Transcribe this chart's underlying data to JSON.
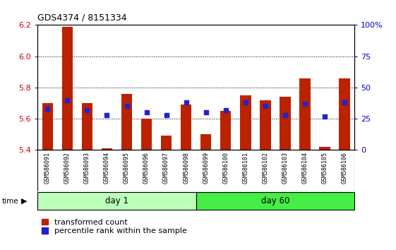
{
  "title": "GDS4374 / 8151334",
  "samples": [
    "GSM586091",
    "GSM586092",
    "GSM586093",
    "GSM586094",
    "GSM586095",
    "GSM586096",
    "GSM586097",
    "GSM586098",
    "GSM586099",
    "GSM586100",
    "GSM586101",
    "GSM586102",
    "GSM586103",
    "GSM586104",
    "GSM586105",
    "GSM586106"
  ],
  "bar_heights": [
    5.7,
    6.19,
    5.7,
    5.41,
    5.76,
    5.6,
    5.49,
    5.69,
    5.5,
    5.65,
    5.75,
    5.72,
    5.74,
    5.86,
    5.42,
    5.86
  ],
  "percentile_values": [
    33,
    40,
    32,
    28,
    35,
    30,
    28,
    38,
    30,
    32,
    38,
    35,
    28,
    37,
    27,
    38
  ],
  "bar_bottom": 5.4,
  "ylim_left": [
    5.4,
    6.2
  ],
  "ylim_right": [
    0,
    100
  ],
  "yticks_left": [
    5.4,
    5.6,
    5.8,
    6.0,
    6.2
  ],
  "yticks_right": [
    0,
    25,
    50,
    75,
    100
  ],
  "ytick_right_labels": [
    "0",
    "25",
    "50",
    "75",
    "100%"
  ],
  "bar_color": "#bb2200",
  "dot_color": "#2222cc",
  "groups": [
    {
      "label": "day 1",
      "start": 0,
      "end": 8,
      "color": "#bbffbb"
    },
    {
      "label": "day 60",
      "start": 8,
      "end": 16,
      "color": "#44ee44"
    }
  ],
  "grid_color": "#000000",
  "legend_labels": [
    "transformed count",
    "percentile rank within the sample"
  ],
  "left_ytick_color": "#cc0000",
  "right_ytick_color": "#0000cc",
  "bar_width": 0.55,
  "dot_size": 18
}
